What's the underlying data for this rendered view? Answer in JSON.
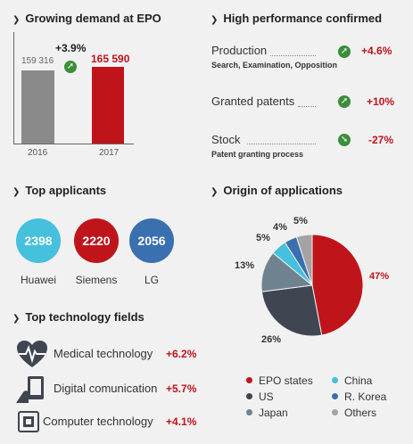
{
  "demand": {
    "heading": "Growing demand at EPO",
    "bars": [
      {
        "year": "2016",
        "value": 159316,
        "label": "159 316"
      },
      {
        "year": "2017",
        "value": 165590,
        "label": "165 590"
      }
    ],
    "growth": "+3.9%",
    "colors": {
      "bar2016": "#8a8a8a",
      "bar2017": "#c0141b"
    }
  },
  "performance": {
    "heading": "High performance confirmed",
    "items": [
      {
        "label": "Production",
        "sub": "Search, Examination, Opposition",
        "value": "+4.6%",
        "trend": "up"
      },
      {
        "label": "Granted patents",
        "sub": "",
        "value": "+10%",
        "trend": "up"
      },
      {
        "label": "Stock",
        "sub": "Patent granting process",
        "value": "-27%",
        "trend": "down"
      }
    ]
  },
  "applicants": {
    "heading": "Top applicants",
    "items": [
      {
        "name": "Huawei",
        "value": "2398",
        "color": "#45c0dd"
      },
      {
        "name": "Siemens",
        "value": "2220",
        "color": "#c0141b"
      },
      {
        "name": "LG",
        "value": "2056",
        "color": "#3a6fb0"
      }
    ]
  },
  "technology": {
    "heading": "Top technology fields",
    "items": [
      {
        "label": "Medical technology",
        "value": "+6.2%",
        "icon": "heart-pulse-icon"
      },
      {
        "label": "Digital comunication",
        "value": "+5.7%",
        "icon": "tablet-hand-icon"
      },
      {
        "label": "Computer technology",
        "value": "+4.1%",
        "icon": "chip-icon"
      }
    ]
  },
  "origin": {
    "heading": "Origin of applications"
  },
  "chart_data": {
    "type": "pie",
    "slices": [
      {
        "name": "EPO states",
        "value": 47,
        "label": "47%",
        "color": "#c0141b"
      },
      {
        "name": "US",
        "value": 26,
        "label": "26%",
        "color": "#3f4551"
      },
      {
        "name": "Japan",
        "value": 13,
        "label": "13%",
        "color": "#6f8290"
      },
      {
        "name": "China",
        "value": 5,
        "label": "5%",
        "color": "#45c0dd"
      },
      {
        "name": "R. Korea",
        "value": 4,
        "label": "4%",
        "color": "#3a6fb0"
      },
      {
        "name": "Others",
        "value": 5,
        "label": "5%",
        "color": "#a3a3a3"
      }
    ]
  }
}
